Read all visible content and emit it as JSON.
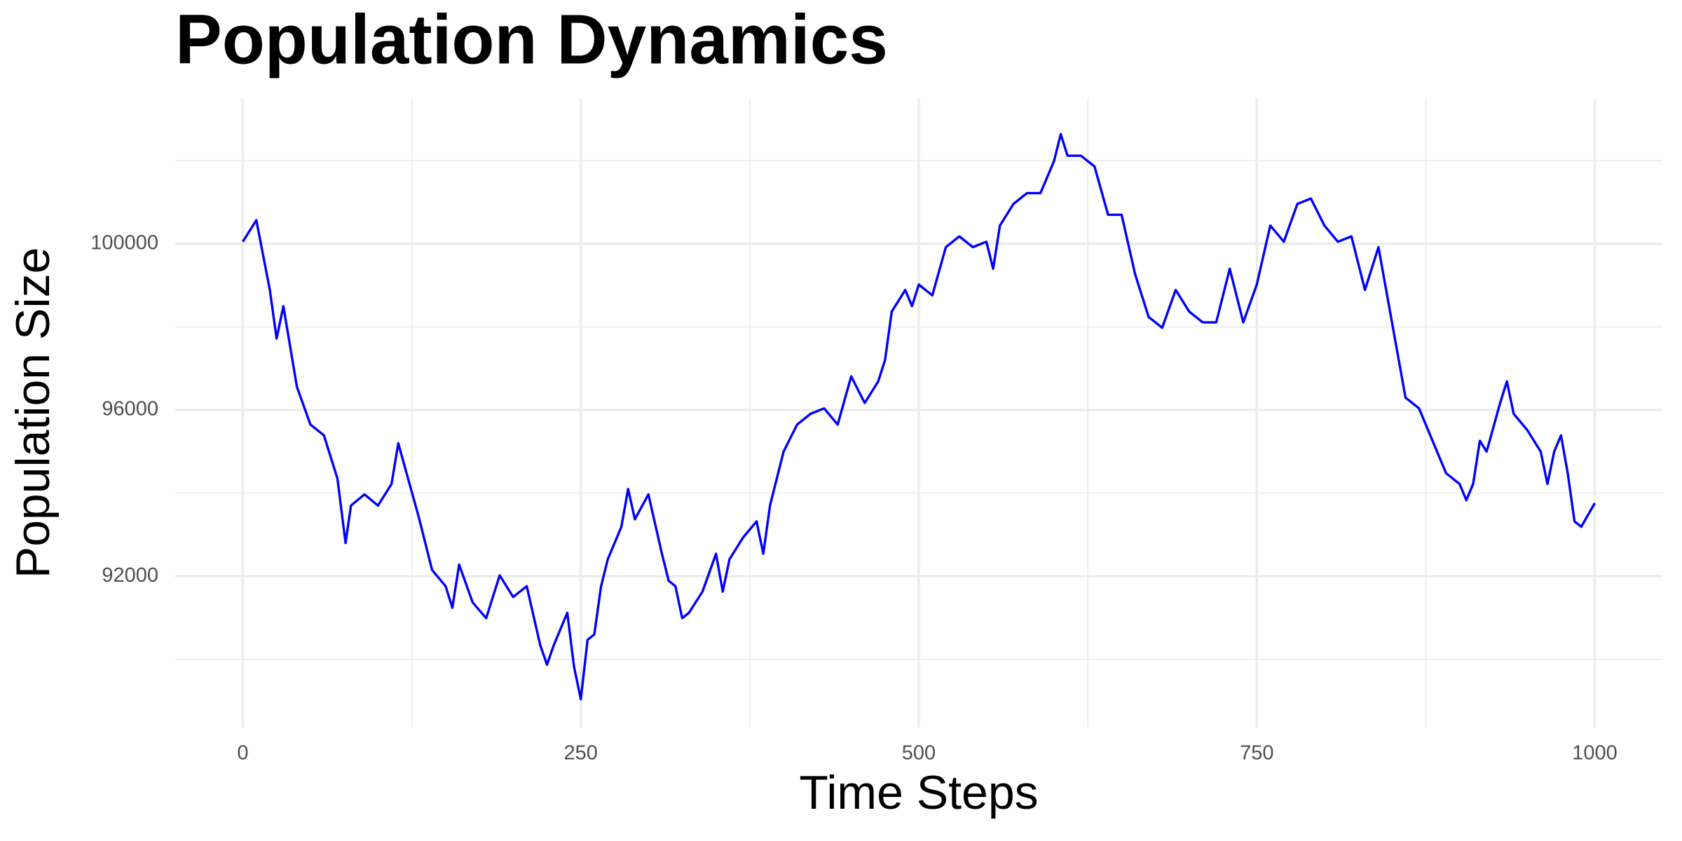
{
  "chart_data": {
    "type": "line",
    "title": "Population Dynamics",
    "x_label": "Time Steps",
    "y_label": "Population Size",
    "x": [
      0,
      10,
      20,
      25,
      30,
      40,
      50,
      60,
      70,
      76,
      80,
      90,
      100,
      110,
      115,
      120,
      130,
      140,
      150,
      155,
      160,
      170,
      180,
      190,
      200,
      210,
      220,
      225,
      230,
      240,
      245,
      250,
      255,
      260,
      265,
      270,
      280,
      285,
      290,
      300,
      310,
      315,
      320,
      325,
      330,
      340,
      350,
      355,
      360,
      370,
      380,
      385,
      390,
      400,
      410,
      420,
      430,
      440,
      450,
      460,
      470,
      475,
      480,
      490,
      495,
      500,
      510,
      520,
      530,
      540,
      550,
      555,
      560,
      570,
      580,
      590,
      600,
      605,
      610,
      620,
      630,
      640,
      650,
      660,
      670,
      680,
      690,
      700,
      710,
      720,
      730,
      740,
      750,
      760,
      770,
      780,
      790,
      800,
      810,
      820,
      830,
      840,
      850,
      860,
      870,
      880,
      890,
      900,
      905,
      910,
      915,
      920,
      930,
      935,
      940,
      950,
      960,
      965,
      970,
      975,
      980,
      985,
      990,
      1000
    ],
    "values": [
      100050,
      100570,
      98890,
      97720,
      98500,
      96560,
      95650,
      95390,
      94350,
      92800,
      93700,
      93970,
      93700,
      94220,
      95200,
      94610,
      93440,
      92150,
      91760,
      91240,
      92280,
      91370,
      90990,
      92020,
      91500,
      91760,
      90340,
      89870,
      90340,
      91120,
      89820,
      89040,
      90470,
      90600,
      91760,
      92410,
      93190,
      94100,
      93370,
      93970,
      92540,
      91890,
      91760,
      90990,
      91120,
      91630,
      92540,
      91630,
      92410,
      92930,
      93320,
      92540,
      93710,
      95000,
      95650,
      95910,
      96040,
      95650,
      96810,
      96170,
      96690,
      97200,
      98370,
      98890,
      98500,
      99020,
      98760,
      99920,
      100180,
      99920,
      100050,
      99400,
      100440,
      100960,
      101220,
      101220,
      101990,
      102640,
      102120,
      102120,
      101860,
      100700,
      100700,
      99270,
      98240,
      97980,
      98890,
      98370,
      98110,
      98110,
      99400,
      98110,
      99020,
      100440,
      100050,
      100960,
      101090,
      100440,
      100050,
      100180,
      98890,
      99920,
      98110,
      96300,
      96040,
      95260,
      94480,
      94220,
      93830,
      94220,
      95260,
      95000,
      96170,
      96690,
      95910,
      95520,
      95000,
      94220,
      95000,
      95390,
      94480,
      93320,
      93190,
      93760
    ],
    "color": "#0000ff",
    "xlim": [
      -50,
      1050
    ],
    "ylim": [
      88360,
      103490
    ],
    "xticks": [
      0,
      250,
      500,
      750,
      1000
    ],
    "yticks": [
      92000,
      96000,
      100000
    ],
    "x_minor_grid": [
      125,
      375,
      625,
      875
    ],
    "y_minor_grid": [
      90000,
      94000,
      98000,
      102000
    ],
    "grid": true
  }
}
